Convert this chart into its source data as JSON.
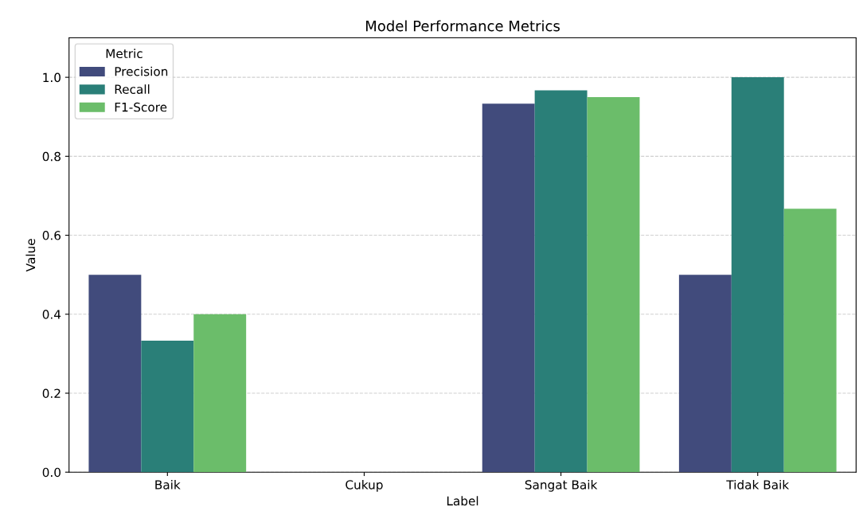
{
  "chart_data": {
    "type": "bar",
    "title": "Model Performance Metrics",
    "xlabel": "Label",
    "ylabel": "Value",
    "legend_title": "Metric",
    "categories": [
      "Baik",
      "Cukup",
      "Sangat Baik",
      "Tidak Baik"
    ],
    "series": [
      {
        "name": "Precision",
        "color": "#414b7c",
        "values": [
          0.5,
          0,
          0.933,
          0.5
        ]
      },
      {
        "name": "Recall",
        "color": "#2a7f78",
        "values": [
          0.333,
          0,
          0.967,
          1.0
        ]
      },
      {
        "name": "F1-Score",
        "color": "#6bbd6a",
        "values": [
          0.4,
          0,
          0.95,
          0.667
        ]
      }
    ],
    "ylim": [
      0,
      1.1
    ],
    "yticks": [
      {
        "value": 0,
        "label": "0.0"
      },
      {
        "value": 0.2,
        "label": "0.2"
      },
      {
        "value": 0.4,
        "label": "0.4"
      },
      {
        "value": 0.6,
        "label": "0.6"
      },
      {
        "value": 0.8,
        "label": "0.8"
      },
      {
        "value": 1.0,
        "label": "1.0"
      }
    ],
    "grid": "y",
    "legend": "top left"
  }
}
